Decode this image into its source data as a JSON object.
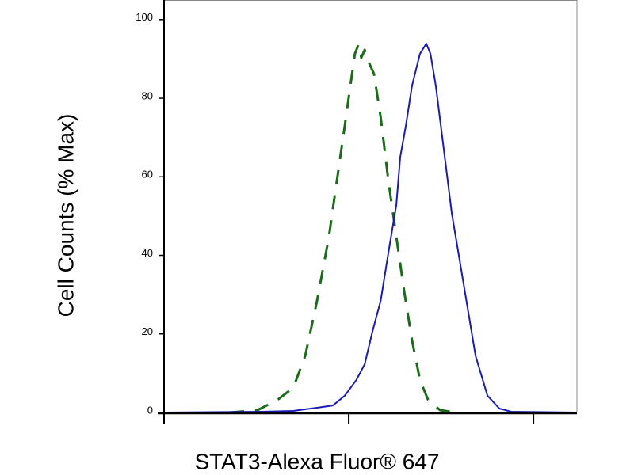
{
  "chart_data": {
    "type": "line",
    "x_label": "STAT3-Alexa Fluor® 647",
    "y_label": "Cell Counts (% Max)",
    "xscale": "log",
    "xlim": [
      1,
      172
    ],
    "xticks": [
      1,
      10,
      100
    ],
    "ylim": [
      0,
      105
    ],
    "yticks": [
      0,
      20,
      40,
      60,
      80,
      100
    ],
    "series": [
      {
        "color": "#1b6b1b",
        "dash": true,
        "x": [
          2.27,
          3.21,
          4.11,
          5.01,
          5.81,
          6.74,
          7.81,
          8.62,
          9.52,
          10.2,
          10.8,
          11.3,
          11.7,
          12.2,
          12.8,
          13.7,
          14.9,
          16.4,
          18.1,
          20.0,
          22.0,
          24.3,
          26.9,
          31.2,
          37.9
        ],
        "values": [
          0,
          0.6,
          3.2,
          6.3,
          14.4,
          28.5,
          44.7,
          58.9,
          73.1,
          83.2,
          91.3,
          93.7,
          90.3,
          92.3,
          89.3,
          86.2,
          75.1,
          58.9,
          44.7,
          30.6,
          18.4,
          8.3,
          3.2,
          0.6,
          0
        ]
      },
      {
        "color": "#1a1ab4",
        "dash": false,
        "x": [
          1,
          3.37,
          5.01,
          6.74,
          8.21,
          9.52,
          11.0,
          12.2,
          13.4,
          14.9,
          16.4,
          18.1,
          19.0,
          20.4,
          22.0,
          24.3,
          26.3,
          27.7,
          29.6,
          32.7,
          36.1,
          41.9,
          48.6,
          56.4,
          65.4,
          75.8,
          172
        ],
        "values": [
          0,
          0.2,
          0.4,
          1.2,
          1.8,
          4.3,
          8.3,
          12.3,
          20.4,
          28.5,
          40.7,
          52.8,
          65.0,
          73.1,
          83.2,
          91.3,
          93.9,
          91.3,
          83.2,
          67.0,
          50.8,
          32.6,
          14.4,
          4.3,
          1.0,
          0.2,
          0
        ]
      }
    ]
  }
}
